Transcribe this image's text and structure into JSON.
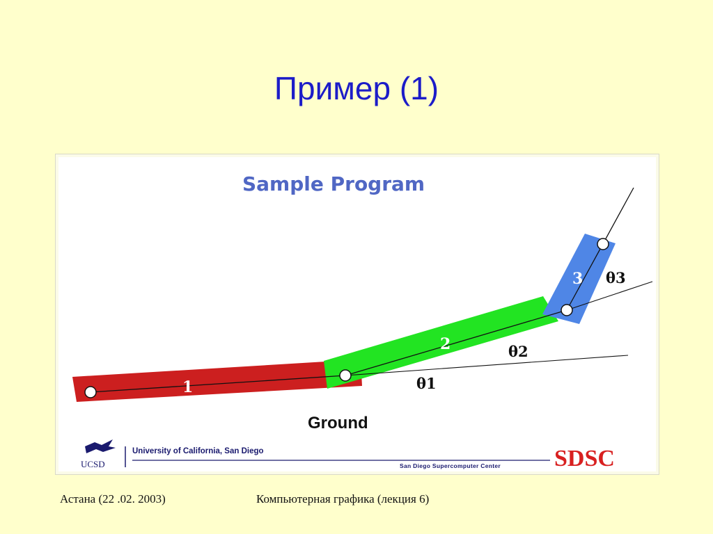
{
  "slide": {
    "title": "Пример (1)",
    "footer_left": "Астана (22 .02. 2003)",
    "footer_right": "Компьютерная графика (лекция 6)"
  },
  "figure": {
    "title": "Sample Program",
    "segments": [
      {
        "label": "1",
        "color": "#cc1f1f"
      },
      {
        "label": "2",
        "color": "#22e422"
      },
      {
        "label": "3",
        "color": "#4f86e6"
      }
    ],
    "angles": [
      "θ1",
      "θ2",
      "θ3"
    ],
    "ground_label": "Ground",
    "ucsd_text": "University of California, San Diego",
    "ucsd_mark": "UCSD",
    "sdsc_subtitle": "San Diego Supercomputer Center",
    "sdsc_logo": "SDSC"
  },
  "colors": {
    "background": "#ffffcc",
    "title": "#1c1cc8",
    "figure_title": "#5067c4",
    "sdsc_red": "#d82020"
  }
}
